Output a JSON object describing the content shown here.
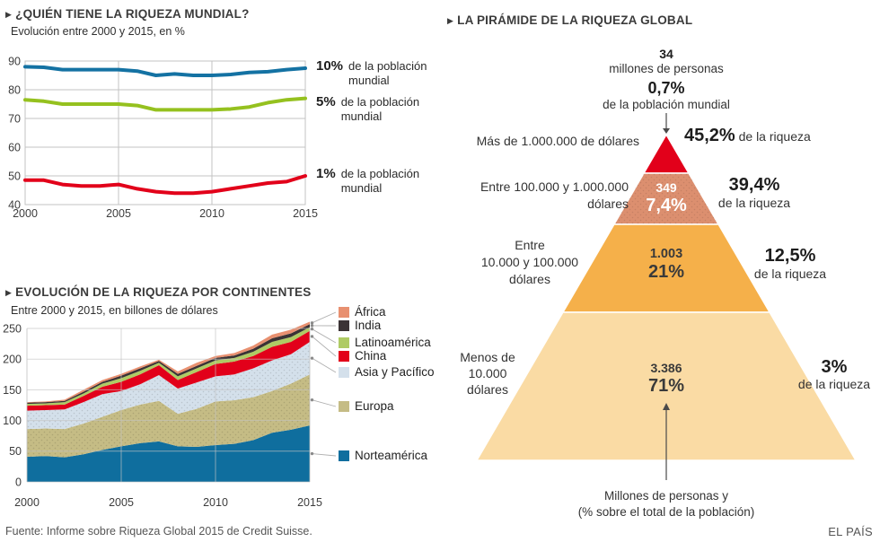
{
  "ui": {
    "section_marker": "▶"
  },
  "footer": {
    "source": "Fuente: Informe sobre Riqueza Global 2015 de Credit Suisse.",
    "brand": "EL PAÍS"
  },
  "chart_data": [
    {
      "id": "quien-tiene-la-riqueza",
      "type": "line",
      "title": "¿QUIÉN TIENE LA RIQUEZA MUNDIAL?",
      "subtitle": "Evolución entre 2000 y 2015, en %",
      "x": [
        2000,
        2001,
        2002,
        2003,
        2004,
        2005,
        2006,
        2007,
        2008,
        2009,
        2010,
        2011,
        2012,
        2013,
        2014,
        2015
      ],
      "xticks": [
        2000,
        2005,
        2010,
        2015
      ],
      "yticks": [
        40,
        50,
        60,
        70,
        80,
        90
      ],
      "ylim": [
        40,
        90
      ],
      "grid": true,
      "series": [
        {
          "name": "10% de la población mundial",
          "color": "#1472A3",
          "label": {
            "pct": "10%",
            "text": "de la población mundial"
          },
          "values": [
            88,
            87.8,
            87,
            87,
            87,
            87,
            86.5,
            85,
            85.5,
            85,
            85,
            85.3,
            86,
            86.3,
            87,
            87.5
          ]
        },
        {
          "name": "5% de la población mundial",
          "color": "#95C11F",
          "label": {
            "pct": "5%",
            "text": "de la población mundial"
          },
          "values": [
            76.5,
            76,
            75,
            75,
            75,
            75,
            74.5,
            73,
            73,
            73,
            73,
            73.3,
            74,
            75.5,
            76.5,
            77
          ]
        },
        {
          "name": "1% de la población mundial",
          "color": "#E2001A",
          "label": {
            "pct": "1%",
            "text": "de la población mundial"
          },
          "values": [
            48.5,
            48.5,
            47,
            46.5,
            46.5,
            47,
            45.5,
            44.5,
            44,
            44,
            44.5,
            45.5,
            46.5,
            47.5,
            48,
            50
          ]
        }
      ]
    },
    {
      "id": "riqueza-por-continentes",
      "type": "area",
      "stacked": true,
      "title": "EVOLUCIÓN DE LA RIQUEZA POR CONTINENTES",
      "subtitle": "Entre 2000 y 2015, en billones de dólares",
      "x": [
        2000,
        2001,
        2002,
        2003,
        2004,
        2005,
        2006,
        2007,
        2008,
        2009,
        2010,
        2011,
        2012,
        2013,
        2014,
        2015
      ],
      "xticks": [
        2000,
        2005,
        2010,
        2015
      ],
      "yticks": [
        0,
        50,
        100,
        150,
        200,
        250
      ],
      "ylim": [
        0,
        265
      ],
      "grid": true,
      "legend_position": "right",
      "legend_order_top_to_bottom": [
        "África",
        "India",
        "Latinoamérica",
        "China",
        "Asia y Pacífico",
        "Europa",
        "Norteamérica"
      ],
      "series": [
        {
          "name": "Norteamérica",
          "color": "#0F6E9E",
          "textured": false,
          "values": [
            41,
            42,
            40,
            45,
            52,
            58,
            63,
            66,
            58,
            57,
            60,
            62,
            68,
            80,
            85,
            92
          ]
        },
        {
          "name": "Europa",
          "color": "#C5BC85",
          "textured": true,
          "values": [
            45,
            45,
            46,
            50,
            54,
            59,
            63,
            66,
            53,
            62,
            71,
            71,
            70,
            68,
            75,
            83
          ]
        },
        {
          "name": "Asia y Pacífico",
          "color": "#D4E0EB",
          "textured": true,
          "values": [
            30,
            30,
            32,
            35,
            37,
            31,
            33,
            42,
            41,
            43,
            41,
            42,
            47,
            50,
            48,
            53
          ]
        },
        {
          "name": "China",
          "color": "#E2001A",
          "textured": false,
          "values": [
            8,
            8,
            8,
            10,
            12,
            15,
            16,
            16,
            14,
            17,
            20,
            21,
            20,
            22,
            20,
            18
          ]
        },
        {
          "name": "Latinoamérica",
          "color": "#AFCB64",
          "textured": false,
          "values": [
            3,
            3,
            4,
            4,
            5,
            6,
            6,
            4,
            6,
            6,
            6,
            6,
            7,
            8,
            8,
            6
          ]
        },
        {
          "name": "India",
          "color": "#3B3335",
          "textured": false,
          "values": [
            2,
            2,
            2,
            3,
            3,
            4,
            4,
            3,
            4,
            4,
            4,
            4,
            5,
            6,
            6,
            5
          ]
        },
        {
          "name": "África",
          "color": "#E89070",
          "textured": false,
          "values": [
            1,
            1,
            2,
            3,
            3,
            3,
            3,
            2,
            4,
            5,
            3,
            4,
            5,
            6,
            6,
            4
          ]
        }
      ]
    },
    {
      "id": "piramide-riqueza-global",
      "type": "pyramid",
      "title": "LA PIRÁMIDE DE LA RIQUEZA GLOBAL",
      "top_annotation": {
        "value": "34",
        "value_label": "millones de personas",
        "pct": "0,7%",
        "pct_label": "de la población mundial"
      },
      "tiers": [
        {
          "name": "mas-de-1000000",
          "color": "#E2001A",
          "textured": false,
          "range_lines": [
            "Más de 1.000.000 de dólares"
          ],
          "wealth_pct": "45,2%",
          "wealth_text": "de la riqueza"
        },
        {
          "name": "entre-100000-y-1000000",
          "color": "#DC8F6F",
          "textured": true,
          "range_lines": [
            "Entre 100.000 y 1.000.000",
            "dólares"
          ],
          "people": "349",
          "people_pct": "7,4%",
          "wealth_pct": "39,4%",
          "wealth_text": "de la riqueza"
        },
        {
          "name": "entre-10000-y-100000",
          "color": "#F5B04A",
          "textured": false,
          "range_lines": [
            "Entre",
            "10.000 y 100.000",
            "dólares"
          ],
          "people": "1.003",
          "people_pct": "21%",
          "wealth_pct": "12,5%",
          "wealth_text": "de la riqueza"
        },
        {
          "name": "menos-de-10000",
          "color": "#FADBA4",
          "textured": false,
          "range_lines": [
            "Menos de",
            "10.000",
            "dólares"
          ],
          "people": "3.386",
          "people_pct": "71%",
          "wealth_pct": "3%",
          "wealth_text": "de la riqueza"
        }
      ],
      "footnote_lines": [
        "Millones de personas y",
        "(% sobre el total de la población)"
      ]
    }
  ]
}
